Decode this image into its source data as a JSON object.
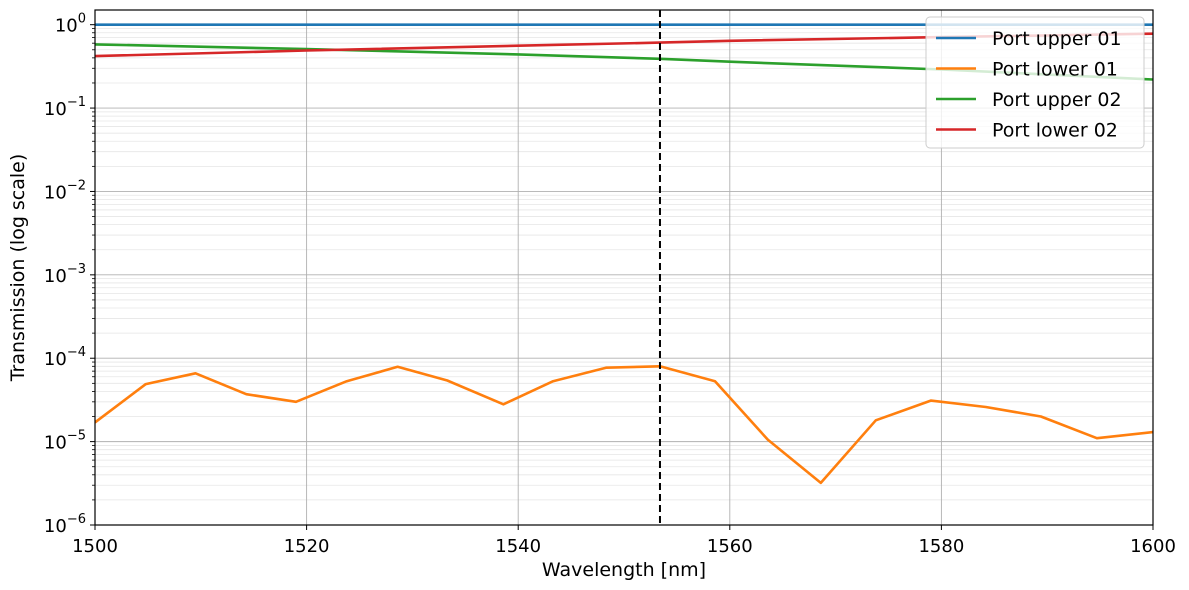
{
  "chart_data": {
    "type": "line",
    "xlabel": "Wavelength [nm]",
    "ylabel": "Transmission (log scale)",
    "xlim": [
      1500,
      1600
    ],
    "ylim": [
      1e-06,
      1.5
    ],
    "yscale": "log",
    "grid": true,
    "minor_grid": true,
    "legend_position": "top-right",
    "x_ticks": [
      1500,
      1520,
      1540,
      1560,
      1580,
      1600
    ],
    "y_ticks": [
      {
        "value": 1e-06,
        "base": "10",
        "exp": "−6"
      },
      {
        "value": 1e-05,
        "base": "10",
        "exp": "−5"
      },
      {
        "value": 0.0001,
        "base": "10",
        "exp": "−4"
      },
      {
        "value": 0.001,
        "base": "10",
        "exp": "−3"
      },
      {
        "value": 0.01,
        "base": "10",
        "exp": "−2"
      },
      {
        "value": 0.1,
        "base": "10",
        "exp": "−1"
      },
      {
        "value": 1,
        "base": "10",
        "exp": "0"
      }
    ],
    "vline": {
      "x": 1553.4,
      "style": "dashed",
      "color": "#000000"
    },
    "x": [
      1500,
      1505,
      1510,
      1515,
      1520,
      1525,
      1530,
      1535,
      1540,
      1545,
      1550,
      1555,
      1560,
      1565,
      1570,
      1575,
      1580,
      1585,
      1590,
      1595,
      1600
    ],
    "series": [
      {
        "name": "Port upper 01",
        "color": "#1f77b4",
        "x": [
          1500,
          1600
        ],
        "values": [
          1.0,
          1.0
        ]
      },
      {
        "name": "Port lower 01",
        "color": "#ff7f0e",
        "x": [
          1500,
          1504.8,
          1509.5,
          1514.3,
          1519.0,
          1523.8,
          1528.6,
          1533.3,
          1538.6,
          1543.3,
          1548.3,
          1553.4,
          1558.6,
          1563.6,
          1568.6,
          1573.8,
          1579.0,
          1584.2,
          1589.4,
          1594.7,
          1600
        ],
        "values": [
          1.7e-05,
          4.9e-05,
          6.6e-05,
          3.7e-05,
          3e-05,
          5.3e-05,
          7.9e-05,
          5.4e-05,
          2.8e-05,
          5.3e-05,
          7.7e-05,
          8e-05,
          5.3e-05,
          1.05e-05,
          3.2e-06,
          1.8e-05,
          3.1e-05,
          2.6e-05,
          2e-05,
          1.1e-05,
          1.3e-05
        ]
      },
      {
        "name": "Port upper 02",
        "color": "#2ca02c",
        "x": [
          1500,
          1520,
          1540,
          1553.4,
          1560,
          1580,
          1600
        ],
        "values": [
          0.58,
          0.51,
          0.44,
          0.39,
          0.36,
          0.29,
          0.22
        ]
      },
      {
        "name": "Port lower 02",
        "color": "#d62728",
        "x": [
          1500,
          1520,
          1540,
          1553.4,
          1560,
          1580,
          1600
        ],
        "values": [
          0.42,
          0.49,
          0.56,
          0.61,
          0.64,
          0.71,
          0.78
        ]
      }
    ]
  }
}
